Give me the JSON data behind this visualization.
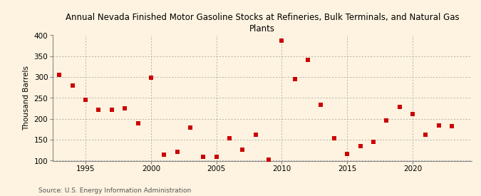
{
  "title": "Annual Nevada Finished Motor Gasoline Stocks at Refineries, Bulk Terminals, and Natural Gas\nPlants",
  "ylabel": "Thousand Barrels",
  "source": "Source: U.S. Energy Information Administration",
  "years": [
    1993,
    1994,
    1995,
    1996,
    1997,
    1998,
    1999,
    2000,
    2001,
    2002,
    2003,
    2004,
    2005,
    2006,
    2007,
    2008,
    2009,
    2010,
    2011,
    2012,
    2013,
    2014,
    2015,
    2016,
    2017,
    2018,
    2019,
    2020,
    2021,
    2022,
    2023
  ],
  "values": [
    305,
    280,
    245,
    222,
    222,
    225,
    190,
    298,
    115,
    122,
    180,
    110,
    110,
    153,
    127,
    163,
    103,
    388,
    296,
    341,
    234,
    153,
    117,
    135,
    145,
    196,
    228,
    212,
    162,
    185,
    182
  ],
  "marker_color": "#cc0000",
  "marker_size": 4,
  "bg_color": "#fdf3e0",
  "plot_bg_color": "#fdf3e0",
  "grid_color": "#999999",
  "ylim": [
    100,
    400
  ],
  "yticks": [
    100,
    150,
    200,
    250,
    300,
    350,
    400
  ],
  "xticks": [
    1995,
    2000,
    2005,
    2010,
    2015,
    2020
  ],
  "title_fontsize": 8.5,
  "label_fontsize": 7.5,
  "tick_fontsize": 7.5,
  "source_fontsize": 6.5
}
